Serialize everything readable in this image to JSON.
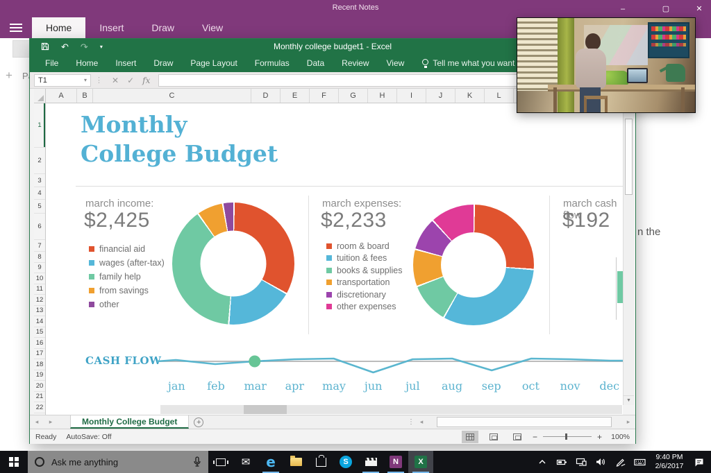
{
  "onenote": {
    "window_title": "Recent Notes",
    "tabs": [
      {
        "label": "Home",
        "active": true
      },
      {
        "label": "Insert",
        "active": false
      },
      {
        "label": "Draw",
        "active": false
      },
      {
        "label": "View",
        "active": false
      }
    ],
    "window_controls": {
      "minimize": "–",
      "maximize": "▢",
      "close": "✕"
    },
    "new_page_plus": "+",
    "new_page_fragment": "Pa",
    "page_text_fragment": "n the",
    "accent_color": "#80397b"
  },
  "excel": {
    "window_title": "Monthly college budget1  -  Excel",
    "quick_access": {
      "save_icon": "floppy-disk",
      "undo_icon": "↶",
      "redo_icon": "↷",
      "dropdown_icon": "▾"
    },
    "ribbon_tabs": [
      "File",
      "Home",
      "Insert",
      "Draw",
      "Page Layout",
      "Formulas",
      "Data",
      "Review",
      "View"
    ],
    "tell_me": "Tell me what you want to do",
    "name_box": "T1",
    "name_box_dropdown": "▾",
    "formula_buttons": {
      "cancel": "✕",
      "enter": "✓",
      "function": "fx"
    },
    "formula_value": "",
    "grid": {
      "columns": [
        "A",
        "B",
        "C",
        "D",
        "E",
        "F",
        "G",
        "H",
        "I",
        "J",
        "K",
        "L"
      ],
      "row_count": 23,
      "selected_row": 1
    },
    "sheet": {
      "title_line1": "Monthly",
      "title_line2": "College Budget",
      "income_label": "march income:",
      "income_value": "$2,425",
      "expenses_label": "march expenses:",
      "expenses_value": "$2,233",
      "cashflow_label": "march cash flow",
      "cashflow_value": "$192",
      "cashflow_chart_label": "CASH FLOW"
    },
    "sheet_tabs": {
      "nav_left": "◂",
      "nav_right": "▸",
      "active": "Monthly College Budget",
      "add": "+",
      "more": "⋮"
    },
    "status_bar": {
      "ready": "Ready",
      "autosave": "AutoSave: Off",
      "zoom": "100%",
      "zoom_minus": "−",
      "zoom_plus": "+"
    },
    "accent_color": "#217346"
  },
  "chart_data": [
    {
      "type": "pie",
      "subtype": "donut",
      "title": "march income: $2,425",
      "labels": [
        "financial aid",
        "wages (after-tax)",
        "family help",
        "from savings",
        "other"
      ],
      "values": [
        33,
        18,
        39,
        7,
        3
      ],
      "colors": [
        "#e0532e",
        "#55b7d9",
        "#6fc9a3",
        "#f0a030",
        "#8f4a9e"
      ],
      "legend_position": "left"
    },
    {
      "type": "pie",
      "subtype": "donut",
      "title": "march expenses: $2,233",
      "labels": [
        "room & board",
        "tuition & fees",
        "books & supplies",
        "transportation",
        "discretionary",
        "other expenses"
      ],
      "values": [
        26,
        32,
        11,
        10,
        9,
        12
      ],
      "colors": [
        "#e0532e",
        "#55b7d9",
        "#6fc9a3",
        "#f0a030",
        "#9c44ad",
        "#e03a96"
      ],
      "legend_position": "left"
    },
    {
      "type": "line",
      "title": "CASH FLOW",
      "x": [
        "jan",
        "feb",
        "mar",
        "apr",
        "may",
        "jun",
        "jul",
        "aug",
        "sep",
        "oct",
        "nov",
        "dec"
      ],
      "values": [
        2,
        -4,
        0,
        3,
        4,
        -16,
        3,
        4,
        -13,
        4,
        3,
        1
      ],
      "unit": "pixels above zero baseline (qualitative)",
      "highlight_point": "mar",
      "line_color": "#5ab6cf",
      "dot_color": "#67c596",
      "baseline_color": "#bcbcbc",
      "grid": false,
      "legend_position": "none"
    }
  ],
  "video_window": {
    "description": "video playing: person standing at a desk by a window"
  },
  "taskbar": {
    "search_placeholder": "Ask me anything",
    "app_icons": [
      "start",
      "cortana-search",
      "microphone",
      "task-view",
      "mail",
      "edge",
      "file-explorer",
      "store",
      "skype",
      "movies-tv",
      "onenote",
      "excel"
    ],
    "running_apps": [
      "edge",
      "movies-tv",
      "onenote",
      "excel"
    ],
    "active_app": "excel",
    "tray_icons": [
      "chevron-up",
      "battery",
      "display",
      "volume",
      "windows-ink",
      "touch-keyboard",
      "action-center"
    ],
    "time": "9:40 PM",
    "date": "2/6/2017",
    "skype_letter": "S",
    "onenote_letter": "N",
    "excel_letter": "X",
    "edge_letter": "e"
  }
}
